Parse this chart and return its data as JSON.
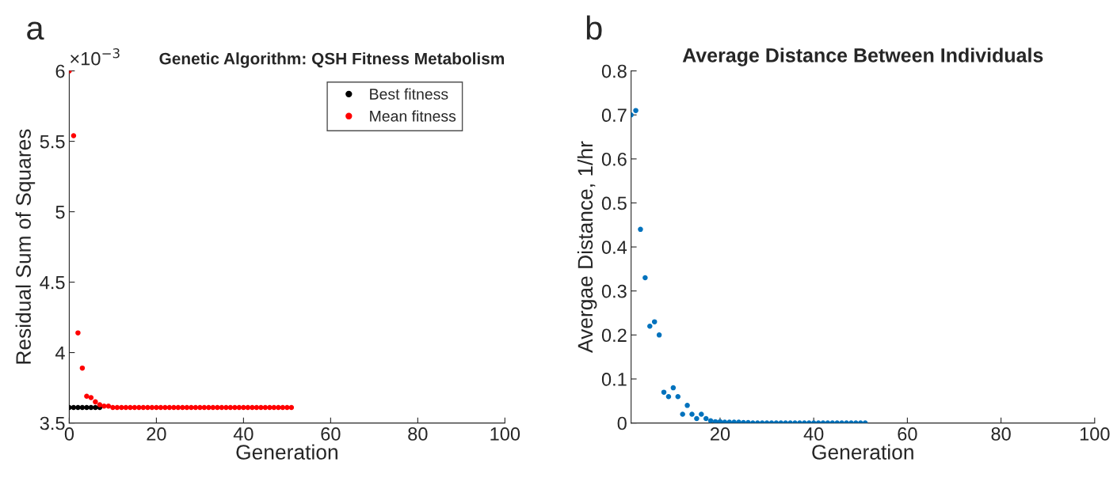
{
  "chart_data": [
    {
      "type": "scatter",
      "title": "Genetic Algorithm: QSH Fitness Metabolism",
      "xlabel": "Generation",
      "ylabel": "Residual Sum of Squares",
      "annotations": [
        "a",
        "×10$^{−3}$"
      ],
      "x": [
        0,
        1,
        2,
        3,
        4,
        5,
        6,
        7,
        8,
        9,
        10,
        11,
        12,
        13,
        14,
        15,
        16,
        17,
        18,
        19,
        20,
        21,
        22,
        23,
        24,
        25,
        26,
        27,
        28,
        29,
        30,
        31,
        32,
        33,
        34,
        35,
        36,
        37,
        38,
        39,
        40,
        41,
        42,
        43,
        44,
        45,
        46,
        47,
        48,
        49,
        50,
        51
      ],
      "series": [
        {
          "name": "Best fitness",
          "color": "#000000",
          "values": [
            3.61,
            3.61,
            3.61,
            3.61,
            3.61,
            3.61,
            3.61,
            3.61,
            null,
            null,
            null,
            null,
            null,
            null,
            null,
            null,
            null,
            null,
            null,
            null,
            null,
            null,
            null,
            null,
            null,
            null,
            null,
            null,
            null,
            null,
            null,
            null,
            null,
            null,
            null,
            null,
            null,
            null,
            null,
            null,
            null,
            null,
            null,
            null,
            null,
            null,
            null,
            null,
            null,
            null,
            null,
            null
          ]
        },
        {
          "name": "Mean fitness",
          "color": "#ff0000",
          "values": [
            6.0,
            5.54,
            4.14,
            3.89,
            3.69,
            3.68,
            3.65,
            3.63,
            3.62,
            3.62,
            3.61,
            3.61,
            3.61,
            3.61,
            3.61,
            3.61,
            3.61,
            3.61,
            3.61,
            3.61,
            3.61,
            3.61,
            3.61,
            3.61,
            3.61,
            3.61,
            3.61,
            3.61,
            3.61,
            3.61,
            3.61,
            3.61,
            3.61,
            3.61,
            3.61,
            3.61,
            3.61,
            3.61,
            3.61,
            3.61,
            3.61,
            3.61,
            3.61,
            3.61,
            3.61,
            3.61,
            3.61,
            3.61,
            3.61,
            3.61,
            3.61,
            3.61
          ]
        }
      ],
      "xlim": [
        0,
        100
      ],
      "xticks": [
        0,
        20,
        40,
        60,
        80,
        100
      ],
      "ylim": [
        3.5,
        6
      ],
      "yticks": [
        3.5,
        4,
        4.5,
        5,
        5.5,
        6
      ],
      "marker": "circle",
      "legend": "top right",
      "grid": false
    },
    {
      "type": "scatter",
      "title": "Average Distance Between Individuals",
      "xlabel": "Generation",
      "ylabel": "Avergae Distance, 1/hr",
      "annotations": [
        "b"
      ],
      "x": [
        1,
        2,
        3,
        4,
        5,
        6,
        7,
        8,
        9,
        10,
        11,
        12,
        13,
        14,
        15,
        16,
        17,
        18,
        19,
        20,
        21,
        22,
        23,
        24,
        25,
        26,
        27,
        28,
        29,
        30,
        31,
        32,
        33,
        34,
        35,
        36,
        37,
        38,
        39,
        40,
        41,
        42,
        43,
        44,
        45,
        46,
        47,
        48,
        49,
        50,
        51
      ],
      "series": [
        {
          "color": "#0072bd",
          "values": [
            0.7,
            0.71,
            0.44,
            0.33,
            0.22,
            0.23,
            0.2,
            0.07,
            0.06,
            0.08,
            0.06,
            0.02,
            0.04,
            0.02,
            0.01,
            0.02,
            0.01,
            0.005,
            0.003,
            0.003,
            0.002,
            0.002,
            0.002,
            0.002,
            0.001,
            0.001,
            0,
            0,
            0,
            0,
            0,
            0,
            0,
            0,
            0,
            0,
            0,
            0,
            0,
            0,
            0,
            0,
            0,
            0,
            0,
            0,
            0,
            0,
            0,
            0,
            0
          ]
        }
      ],
      "xlim": [
        1,
        100
      ],
      "xticks": [
        20,
        40,
        60,
        80,
        100
      ],
      "ylim": [
        0,
        0.8
      ],
      "yticks": [
        0,
        0.1,
        0.2,
        0.3,
        0.4,
        0.5,
        0.6,
        0.7,
        0.8
      ],
      "marker": "circle",
      "grid": false
    }
  ]
}
